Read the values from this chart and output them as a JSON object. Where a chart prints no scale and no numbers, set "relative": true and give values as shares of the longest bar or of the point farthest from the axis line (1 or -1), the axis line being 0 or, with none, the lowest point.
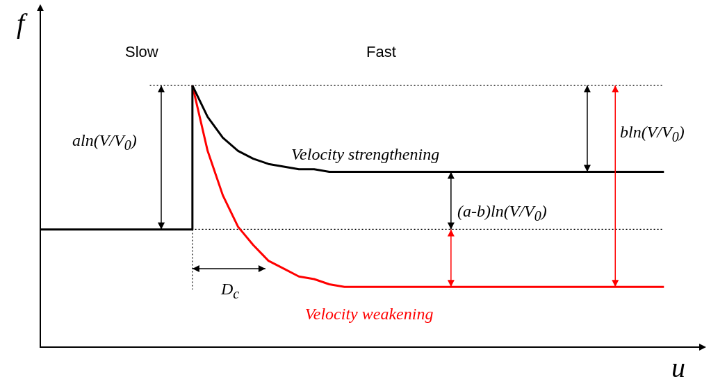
{
  "chart_data": {
    "type": "line",
    "relative": true,
    "xlabel": "u",
    "ylabel": "f",
    "categories": [
      null,
      null,
      null,
      null,
      null,
      null,
      null,
      null,
      null,
      null,
      null,
      null,
      null,
      null,
      null,
      null,
      null,
      null,
      null,
      null,
      null,
      null,
      null,
      null,
      null,
      null,
      null,
      null,
      null,
      null,
      null,
      null,
      null,
      null,
      null,
      null,
      null,
      null,
      null,
      null,
      null,
      null
    ],
    "series": [
      {
        "type": "step",
        "color": "#000000",
        "values": [
          0.45,
          0.45,
          0.45,
          0.45,
          0.45,
          0.45,
          0.45,
          0.45,
          0.45,
          0.45,
          1,
          null,
          null,
          null,
          null,
          null,
          null,
          null,
          null,
          null,
          null,
          null,
          null,
          null,
          null,
          null,
          null,
          null,
          null,
          null,
          null,
          null,
          null,
          null,
          null,
          null,
          null,
          null,
          null,
          null,
          null,
          null
        ]
      },
      {
        "name": "Velocity strengthening",
        "color": "#000000",
        "values": [
          null,
          null,
          null,
          null,
          null,
          null,
          null,
          null,
          null,
          null,
          1,
          0.88,
          0.8,
          0.75,
          0.72,
          0.7,
          0.69,
          0.68,
          0.68,
          0.67,
          0.67,
          0.67,
          0.67,
          0.67,
          0.67,
          0.67,
          0.67,
          0.67,
          0.67,
          0.67,
          0.67,
          0.67,
          0.67,
          0.67,
          0.67,
          0.67,
          0.67,
          0.67,
          0.67,
          0.67,
          0.67,
          0.67
        ]
      },
      {
        "name": "Velocity weakening",
        "color": "#ff0000",
        "values": [
          null,
          null,
          null,
          null,
          null,
          null,
          null,
          null,
          null,
          null,
          1,
          0.75,
          0.58,
          0.46,
          0.39,
          0.33,
          0.3,
          0.27,
          0.26,
          0.24,
          0.23,
          0.23,
          0.23,
          0.23,
          0.23,
          0.23,
          0.23,
          0.23,
          0.23,
          0.23,
          0.23,
          0.23,
          0.23,
          0.23,
          0.23,
          0.23,
          0.23,
          0.23,
          0.23,
          0.23,
          0.23,
          0.23
        ]
      }
    ],
    "ref_lines": [
      {
        "axis": "y",
        "value": 1,
        "line_style": "dotted",
        "color": "#000000"
      },
      {
        "axis": "y",
        "value": 0.45,
        "line_style": "dotted",
        "color": "#000000"
      }
    ],
    "annotations": [
      "Slow",
      "Fast",
      "aln(V/V$_{0}$)",
      "bln(V/V$_{0}$)",
      "(a-b)ln(V/V$_{0}$)",
      "D$_{c}$"
    ],
    "marker": "none",
    "line_style": "solid"
  }
}
